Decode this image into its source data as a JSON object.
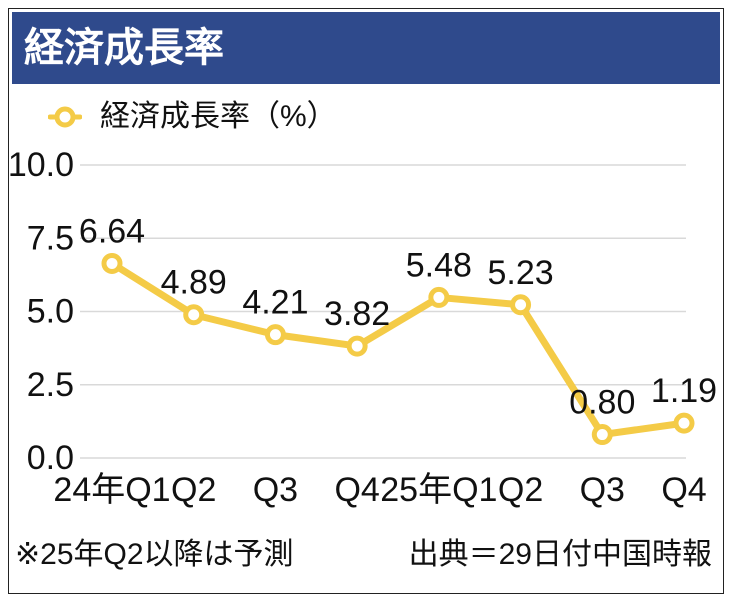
{
  "colors": {
    "header_bg": "#2f4a8c",
    "header_text": "#ffffff",
    "line": "#f4cb47",
    "marker_fill": "#ffffff",
    "grid": "#d9d9d9",
    "text": "#111111",
    "frame": "#222222"
  },
  "footer": {
    "note": "※25年Q2以降は予測",
    "source": "出典＝29日付中国時報"
  },
  "chart_data": {
    "type": "line",
    "title": "経済成長率",
    "categories": [
      "24年Q1",
      "Q2",
      "Q3",
      "Q4",
      "25年Q1",
      "Q2",
      "Q3",
      "Q4"
    ],
    "series": [
      {
        "name": "経済成長率（%）",
        "values": [
          6.64,
          4.89,
          4.21,
          3.82,
          5.48,
          5.23,
          0.8,
          1.19
        ],
        "data_labels": [
          "6.64",
          "4.89",
          "4.21",
          "3.82",
          "5.48",
          "5.23",
          "0.80",
          "1.19"
        ]
      }
    ],
    "ylim": [
      0,
      10
    ],
    "yticks": [
      0,
      2.5,
      5,
      7.5,
      10
    ],
    "ytick_labels": [
      "0.0",
      "2.5",
      "5.0",
      "7.5",
      "10.0"
    ],
    "grid": true,
    "legend": "top-left",
    "marker": "circle"
  }
}
